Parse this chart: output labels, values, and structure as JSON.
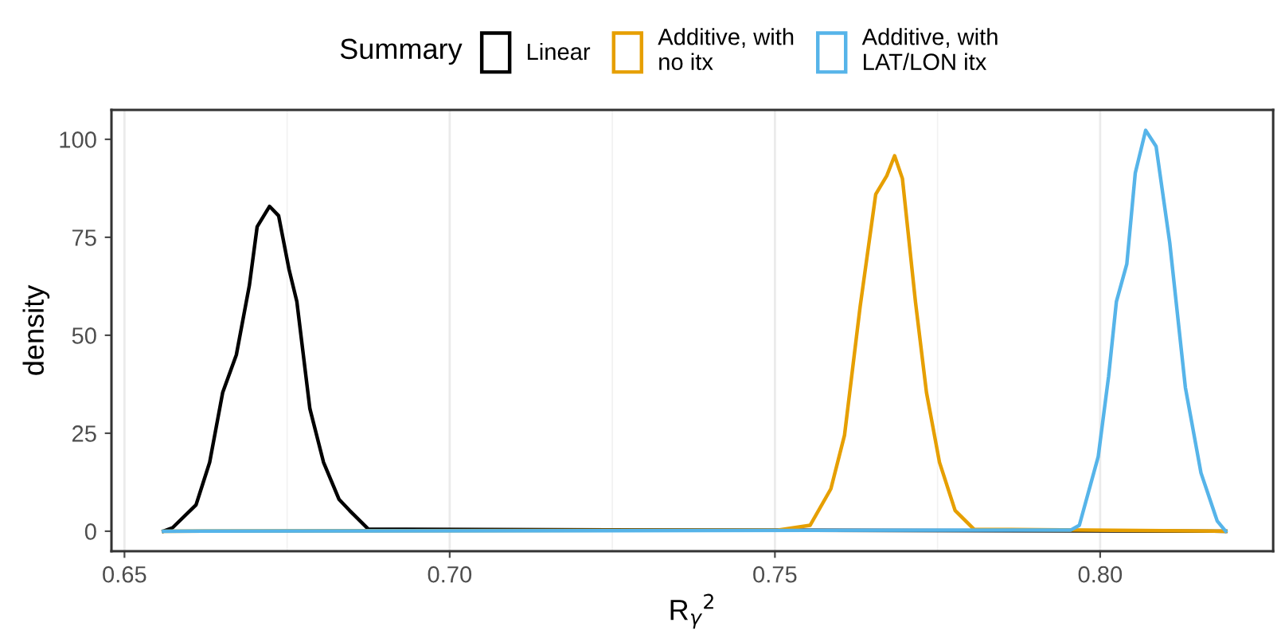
{
  "chart_data": {
    "type": "line",
    "xlabel": "R$_{γ}$$^{2}$",
    "ylabel": "density",
    "legend_title": "Summary",
    "legend": "top",
    "grid": "x",
    "marker": "none",
    "line_style": "solid",
    "xlim": [
      0.648,
      0.8266
    ],
    "ylim": [
      -5.1,
      107.5
    ],
    "xticks": [
      {
        "value": 0.65,
        "label": "0.65"
      },
      {
        "value": 0.7,
        "label": "0.70"
      },
      {
        "value": 0.75,
        "label": "0.75"
      },
      {
        "value": 0.8,
        "label": "0.80"
      }
    ],
    "yticks": [
      0,
      25,
      50,
      75,
      100
    ],
    "series": [
      {
        "name": "Linear",
        "color": "#000000",
        "x": [
          0.656,
          0.6574,
          0.661,
          0.6631,
          0.6651,
          0.6672,
          0.6692,
          0.6704,
          0.6723,
          0.6737,
          0.6753,
          0.6765,
          0.6785,
          0.6806,
          0.683,
          0.6846,
          0.6875,
          0.8193
        ],
        "values": [
          0,
          0.9,
          6.7,
          17.6,
          35.4,
          45,
          62.7,
          77.7,
          82.9,
          80.5,
          66.8,
          58.6,
          31.3,
          17.6,
          8.1,
          5.3,
          0.5,
          0
        ]
      },
      {
        "name": "Additive, with\nno itx",
        "color": "#E69F00",
        "x": [
          0.656,
          0.7505,
          0.7554,
          0.7586,
          0.7607,
          0.7631,
          0.7655,
          0.7672,
          0.7684,
          0.7696,
          0.7716,
          0.7733,
          0.7753,
          0.7777,
          0.7806,
          0.8193
        ],
        "values": [
          0,
          0.3,
          1.5,
          10.8,
          24.5,
          57.3,
          86,
          90.7,
          95.8,
          90,
          58.6,
          35.4,
          17.6,
          5.3,
          0.5,
          0
        ]
      },
      {
        "name": "Additive, with\nLAT/LON itx",
        "color": "#56B4E9",
        "x": [
          0.656,
          0.7955,
          0.7968,
          0.7997,
          0.8013,
          0.8025,
          0.8041,
          0.8054,
          0.807,
          0.8086,
          0.8107,
          0.8131,
          0.8155,
          0.818,
          0.8193
        ],
        "values": [
          0,
          0.3,
          1.5,
          19,
          39.5,
          58.6,
          68.2,
          91.4,
          102.3,
          98.2,
          73.6,
          36.7,
          14.9,
          2.6,
          0
        ]
      }
    ]
  }
}
